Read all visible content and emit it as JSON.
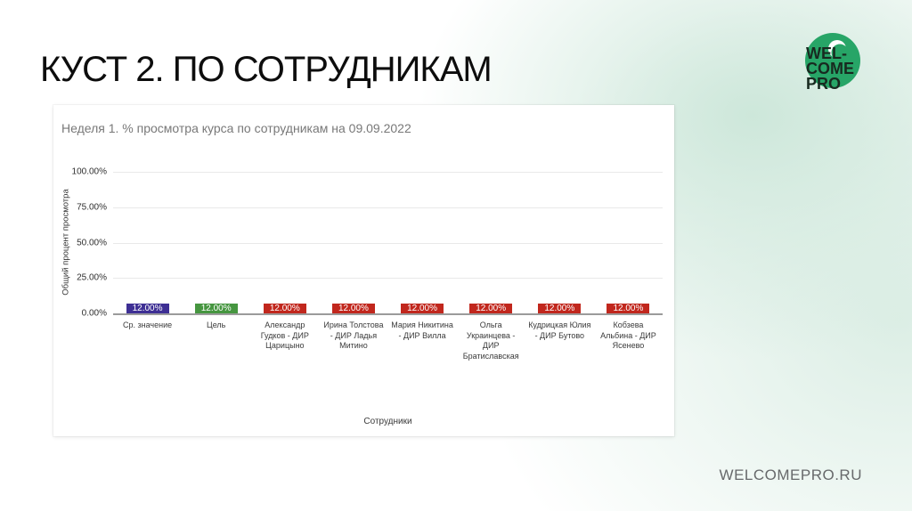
{
  "slide": {
    "title": "КУСТ 2. ПО СОТРУДНИКАМ",
    "footer": "WELCOMEPRO.RU"
  },
  "logo": {
    "lines": [
      "WEL-",
      "COME",
      "PRO"
    ],
    "circle_color": "#27a567",
    "text_color": "#182a20"
  },
  "chart_data": {
    "type": "bar",
    "title": "Неделя 1. % просмотра курса по сотрудникам на 09.09.2022",
    "xlabel": "Сотрудники",
    "ylabel": "Общий процент просмотра",
    "ylim": [
      0,
      100
    ],
    "grid": true,
    "legend": "none",
    "yticks": [
      {
        "value": 0,
        "label": "0.00%"
      },
      {
        "value": 25,
        "label": "25.00%"
      },
      {
        "value": 50,
        "label": "50.00%"
      },
      {
        "value": 75,
        "label": "75.00%"
      },
      {
        "value": 100,
        "label": "100.00%"
      }
    ],
    "categories": [
      "Ср. значение",
      "Цель",
      "Александр Гудков - ДИР Царицыно",
      "Ирина Толстова - ДИР Ладья Митино",
      "Мария Никитина - ДИР Вилла",
      "Ольга Украинцева - ДИР Братиславская",
      "Кудрицкая Юлия - ДИР Бутово",
      "Кобзева Альбина - ДИР Ясенево"
    ],
    "values": [
      12,
      12,
      12,
      12,
      12,
      12,
      12,
      12
    ],
    "value_labels": [
      "12.00%",
      "12.00%",
      "12.00%",
      "12.00%",
      "12.00%",
      "12.00%",
      "12.00%",
      "12.00%"
    ],
    "bar_colors": [
      "#3e2f94",
      "#469640",
      "#c1271d",
      "#c1271d",
      "#c1271d",
      "#c1271d",
      "#c1271d",
      "#c1271d"
    ]
  }
}
